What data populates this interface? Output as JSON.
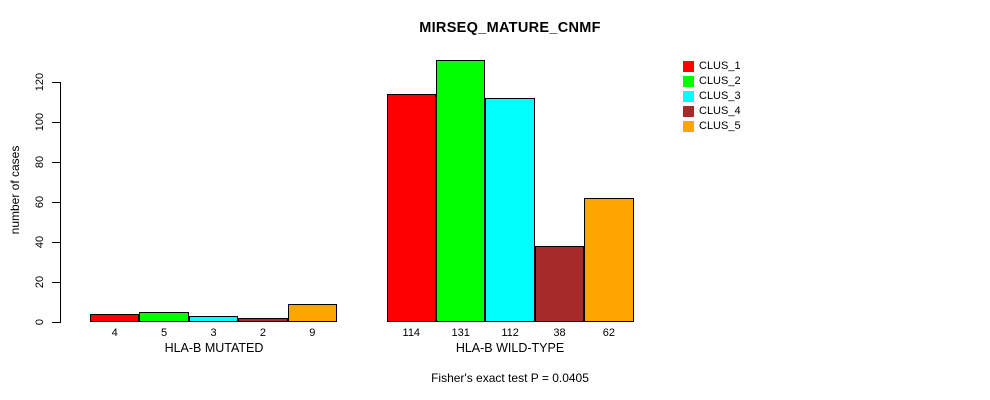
{
  "chart_data": {
    "type": "bar",
    "title": "MIRSEQ_MATURE_CNMF",
    "ylabel": "number of cases",
    "ylim": [
      0,
      120
    ],
    "yticks": [
      0,
      20,
      40,
      60,
      80,
      100,
      120
    ],
    "grid": false,
    "legend_position": "top-right",
    "categories": [
      "HLA-B MUTATED",
      "HLA-B WILD-TYPE"
    ],
    "series": [
      {
        "name": "CLUS_1",
        "color": "#ff0000",
        "values": [
          4,
          114
        ]
      },
      {
        "name": "CLUS_2",
        "color": "#00ff00",
        "values": [
          5,
          131
        ]
      },
      {
        "name": "CLUS_3",
        "color": "#00ffff",
        "values": [
          3,
          112
        ]
      },
      {
        "name": "CLUS_4",
        "color": "#a52a2a",
        "values": [
          2,
          38
        ]
      },
      {
        "name": "CLUS_5",
        "color": "#ffa500",
        "values": [
          9,
          62
        ]
      }
    ],
    "bar_value_labels": [
      [
        "4",
        "5",
        "3",
        "2",
        "9"
      ],
      [
        "114",
        "131",
        "112",
        "38",
        "62"
      ]
    ],
    "footnote": "Fisher's exact test P = 0.0405"
  }
}
